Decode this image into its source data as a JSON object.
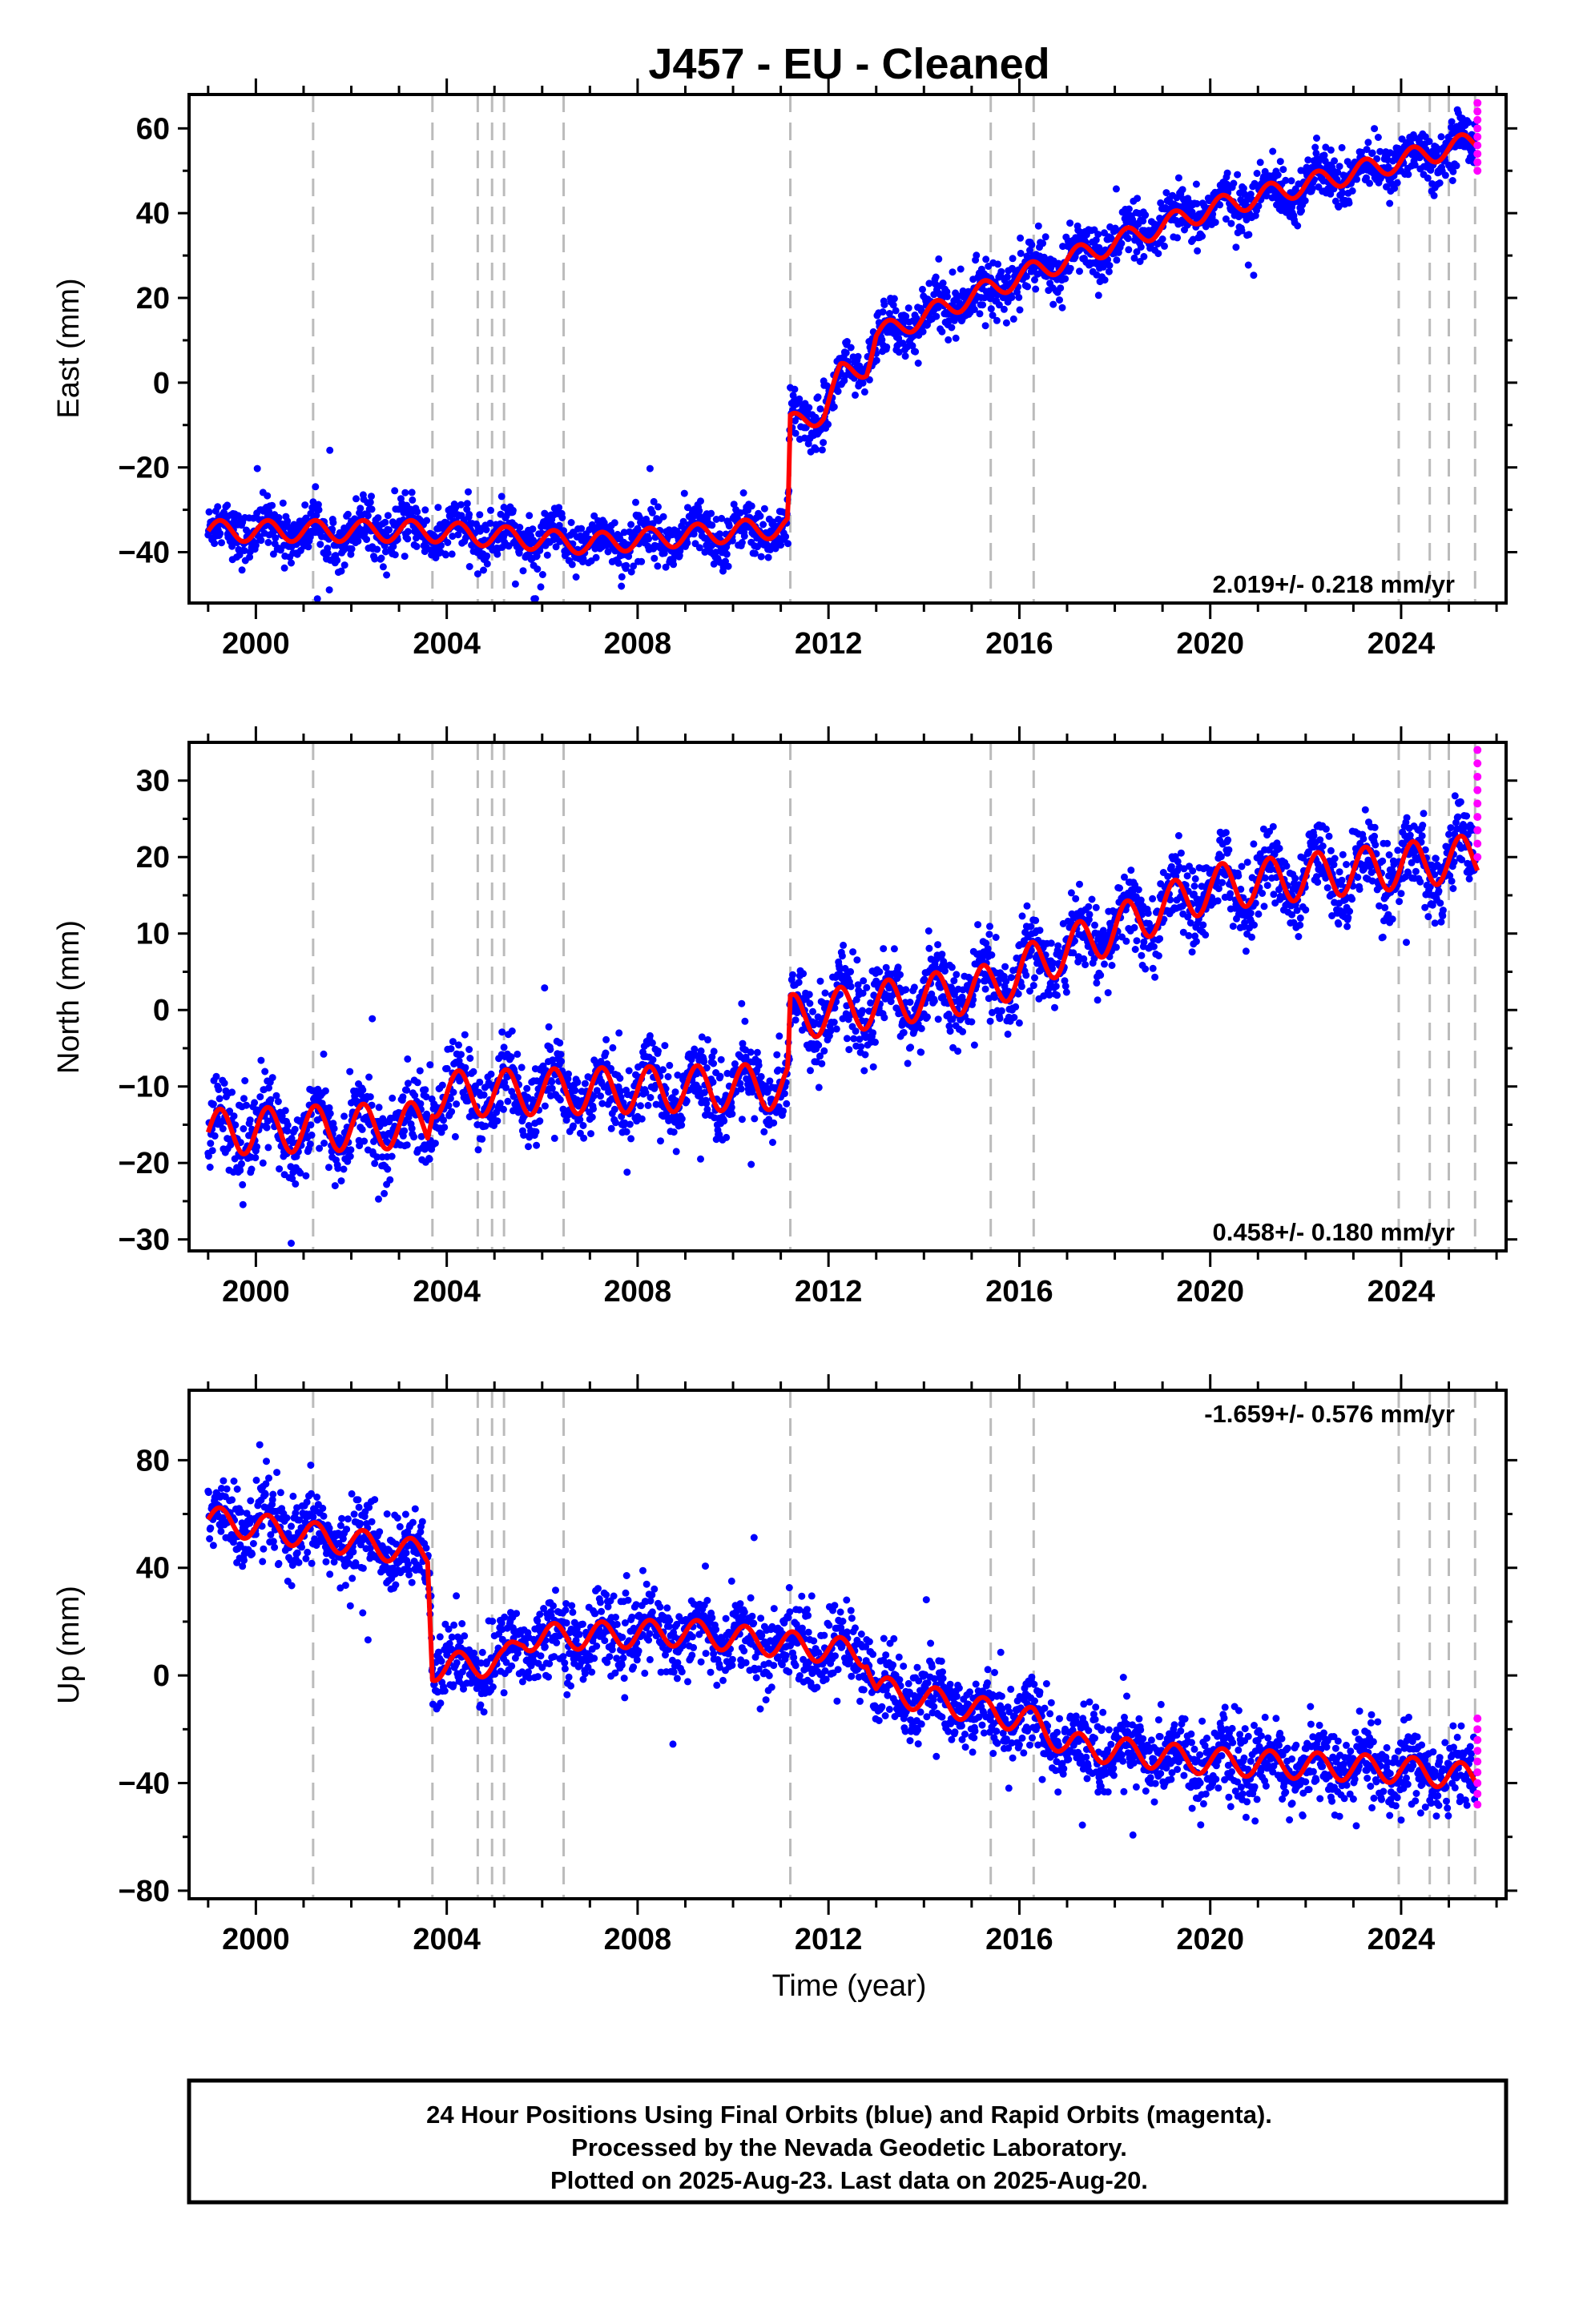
{
  "title": "J457  - EU - Cleaned",
  "colors": {
    "final_orbits": "#0000ff",
    "rapid_orbits": "#ff00ff",
    "model": "#ff0000",
    "event_lines": "#bbbbbb",
    "frame": "#000000"
  },
  "x_axis": {
    "label": "Time (year)",
    "range": [
      1998.6,
      2026.2
    ],
    "ticks": [
      2000,
      2004,
      2008,
      2012,
      2016,
      2020,
      2024
    ],
    "tick_labels": [
      "2000",
      "2004",
      "2008",
      "2012",
      "2016",
      "2020",
      "2024"
    ]
  },
  "event_lines": [
    2001.2,
    2003.7,
    2004.65,
    2004.95,
    2005.2,
    2006.45,
    2011.2,
    2015.4,
    2016.3,
    2023.95,
    2024.6,
    2025.0,
    2025.55
  ],
  "footer": {
    "line1": "24 Hour Positions Using Final Orbits (blue) and Rapid Orbits (magenta).",
    "line2": "Processed by the Nevada Geodetic Laboratory.",
    "line3": "Plotted on 2025-Aug-23. Last data on 2025-Aug-20."
  },
  "chart_data": [
    {
      "type": "scatter",
      "ylabel": "East (mm)",
      "ylim": [
        -52,
        68
      ],
      "yticks": [
        -40,
        -20,
        0,
        20,
        40,
        60
      ],
      "ytick_labels": [
        "−40",
        "−20",
        "0",
        "20",
        "40",
        "60"
      ],
      "rate_label": "2.019+/- 0.218 mm/yr",
      "rate_position": "bottom-right",
      "scatter_spread_mm": 3.0,
      "seasonal_amplitude_mm": 2.5,
      "model_trend": [
        {
          "x": 1999.0,
          "y": -35
        },
        {
          "x": 2003.6,
          "y": -35
        },
        {
          "x": 2007.0,
          "y": -38
        },
        {
          "x": 2011.15,
          "y": -34
        },
        {
          "x": 2011.2,
          "y": -10
        },
        {
          "x": 2011.9,
          "y": -7
        },
        {
          "x": 2012.25,
          "y": 2
        },
        {
          "x": 2012.8,
          "y": 4
        },
        {
          "x": 2013.0,
          "y": 11
        },
        {
          "x": 2016.0,
          "y": 25
        },
        {
          "x": 2020.0,
          "y": 41
        },
        {
          "x": 2025.6,
          "y": 57
        }
      ],
      "rapid_points": {
        "x": 2025.6,
        "y_min": 50,
        "y_max": 66
      }
    },
    {
      "type": "scatter",
      "ylabel": "North (mm)",
      "ylim": [
        -31.5,
        35
      ],
      "yticks": [
        -30,
        -20,
        -10,
        0,
        10,
        20,
        30
      ],
      "ytick_labels": [
        "−30",
        "−20",
        "−10",
        "0",
        "10",
        "20",
        "30"
      ],
      "rate_label": "0.458+/- 0.180 mm/yr",
      "rate_position": "bottom-right",
      "scatter_spread_mm": 2.5,
      "seasonal_amplitude_mm": 3.0,
      "model_trend": [
        {
          "x": 1999.0,
          "y": -16
        },
        {
          "x": 2003.6,
          "y": -15
        },
        {
          "x": 2003.7,
          "y": -11
        },
        {
          "x": 2011.15,
          "y": -10
        },
        {
          "x": 2011.2,
          "y": -1
        },
        {
          "x": 2015.4,
          "y": 3
        },
        {
          "x": 2016.3,
          "y": 6
        },
        {
          "x": 2020.0,
          "y": 16
        },
        {
          "x": 2025.6,
          "y": 20
        }
      ],
      "rapid_points": {
        "x": 2025.6,
        "y_min": 20,
        "y_max": 34
      }
    },
    {
      "type": "scatter",
      "ylabel": "Up (mm)",
      "ylim": [
        -83,
        106
      ],
      "yticks": [
        -80,
        -40,
        0,
        40,
        80
      ],
      "ytick_labels": [
        "−80",
        "−40",
        "0",
        "40",
        "80"
      ],
      "rate_label": "-1.659+/- 0.576 mm/yr",
      "rate_position": "top-right",
      "scatter_spread_mm": 7.0,
      "seasonal_amplitude_mm": 5.0,
      "model_trend": [
        {
          "x": 1999.0,
          "y": 58
        },
        {
          "x": 2001.2,
          "y": 52
        },
        {
          "x": 2003.6,
          "y": 45
        },
        {
          "x": 2003.7,
          "y": 3
        },
        {
          "x": 2005.2,
          "y": 5
        },
        {
          "x": 2005.6,
          "y": 14
        },
        {
          "x": 2009.0,
          "y": 16
        },
        {
          "x": 2012.8,
          "y": 8
        },
        {
          "x": 2013.0,
          "y": -5
        },
        {
          "x": 2016.3,
          "y": -17
        },
        {
          "x": 2017.0,
          "y": -26
        },
        {
          "x": 2020.0,
          "y": -32
        },
        {
          "x": 2024.0,
          "y": -35
        },
        {
          "x": 2025.6,
          "y": -38
        }
      ],
      "rapid_points": {
        "x": 2025.6,
        "y_min": -48,
        "y_max": -16
      }
    }
  ]
}
